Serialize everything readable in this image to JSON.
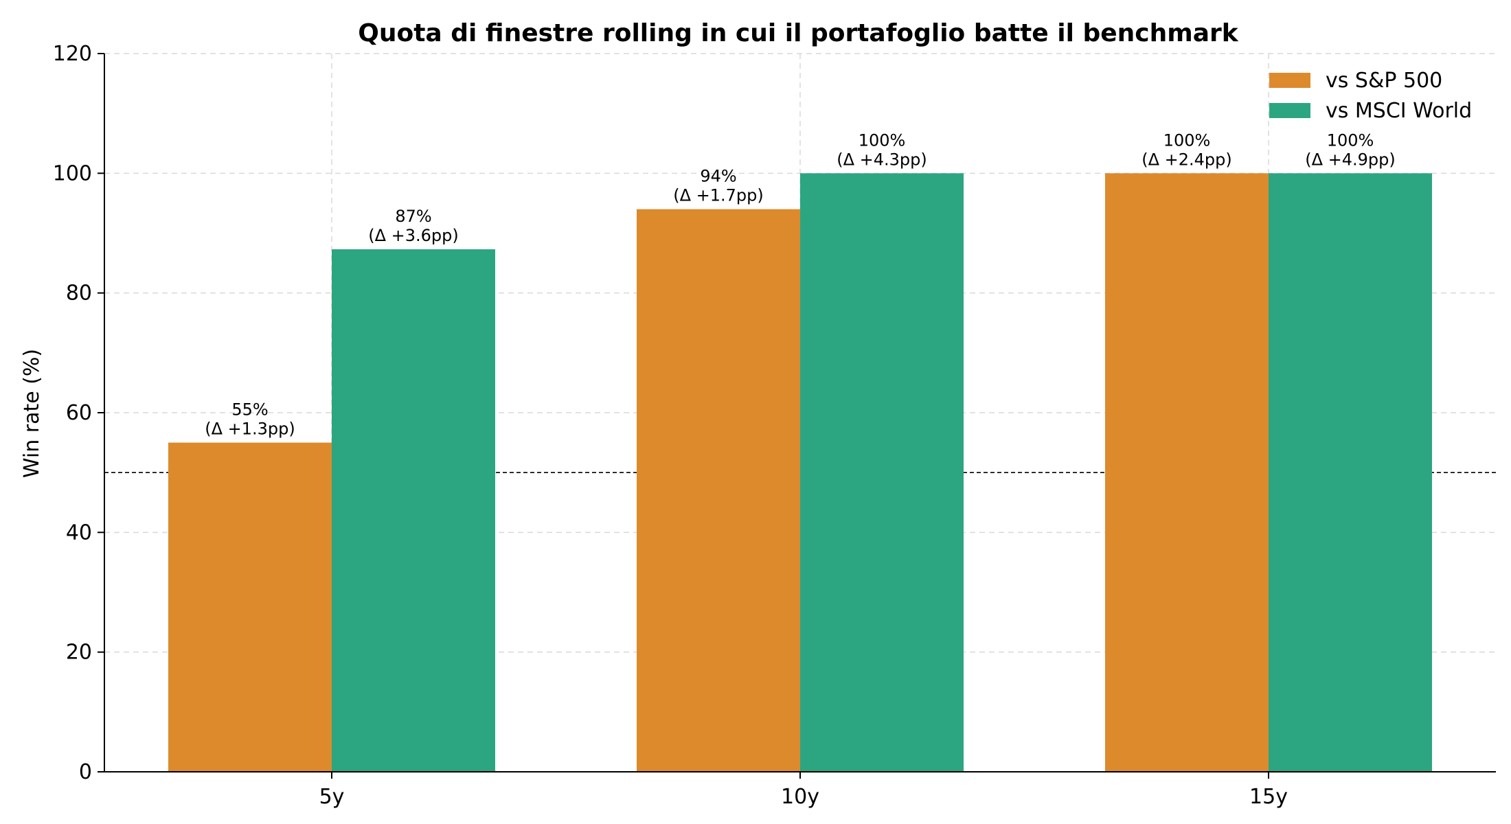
{
  "chart_data": {
    "type": "bar",
    "title": "Quota di finestre rolling in cui il portafoglio batte il benchmark",
    "xlabel": "",
    "ylabel": "Win rate (%)",
    "categories": [
      "5y",
      "10y",
      "15y"
    ],
    "ylim": [
      0,
      120
    ],
    "yticks": [
      0,
      20,
      40,
      60,
      80,
      100,
      120
    ],
    "grid": true,
    "legend_position": "top-right",
    "reference_line": {
      "y": 50,
      "style": "dashed",
      "color": "#000000"
    },
    "series": [
      {
        "name": "vs S&P 500",
        "color": "#DD8A2C",
        "values": [
          55,
          94,
          100
        ],
        "labels": [
          [
            "55%",
            "(Δ +1.3pp)"
          ],
          [
            "94%",
            "(Δ +1.7pp)"
          ],
          [
            "100%",
            "(Δ +2.4pp)"
          ]
        ]
      },
      {
        "name": "vs MSCI World",
        "color": "#2CA680",
        "values": [
          87.3,
          100,
          100
        ],
        "labels": [
          [
            "87%",
            "(Δ +3.6pp)"
          ],
          [
            "100%",
            "(Δ +4.3pp)"
          ],
          [
            "100%",
            "(Δ +4.9pp)"
          ]
        ]
      }
    ]
  }
}
